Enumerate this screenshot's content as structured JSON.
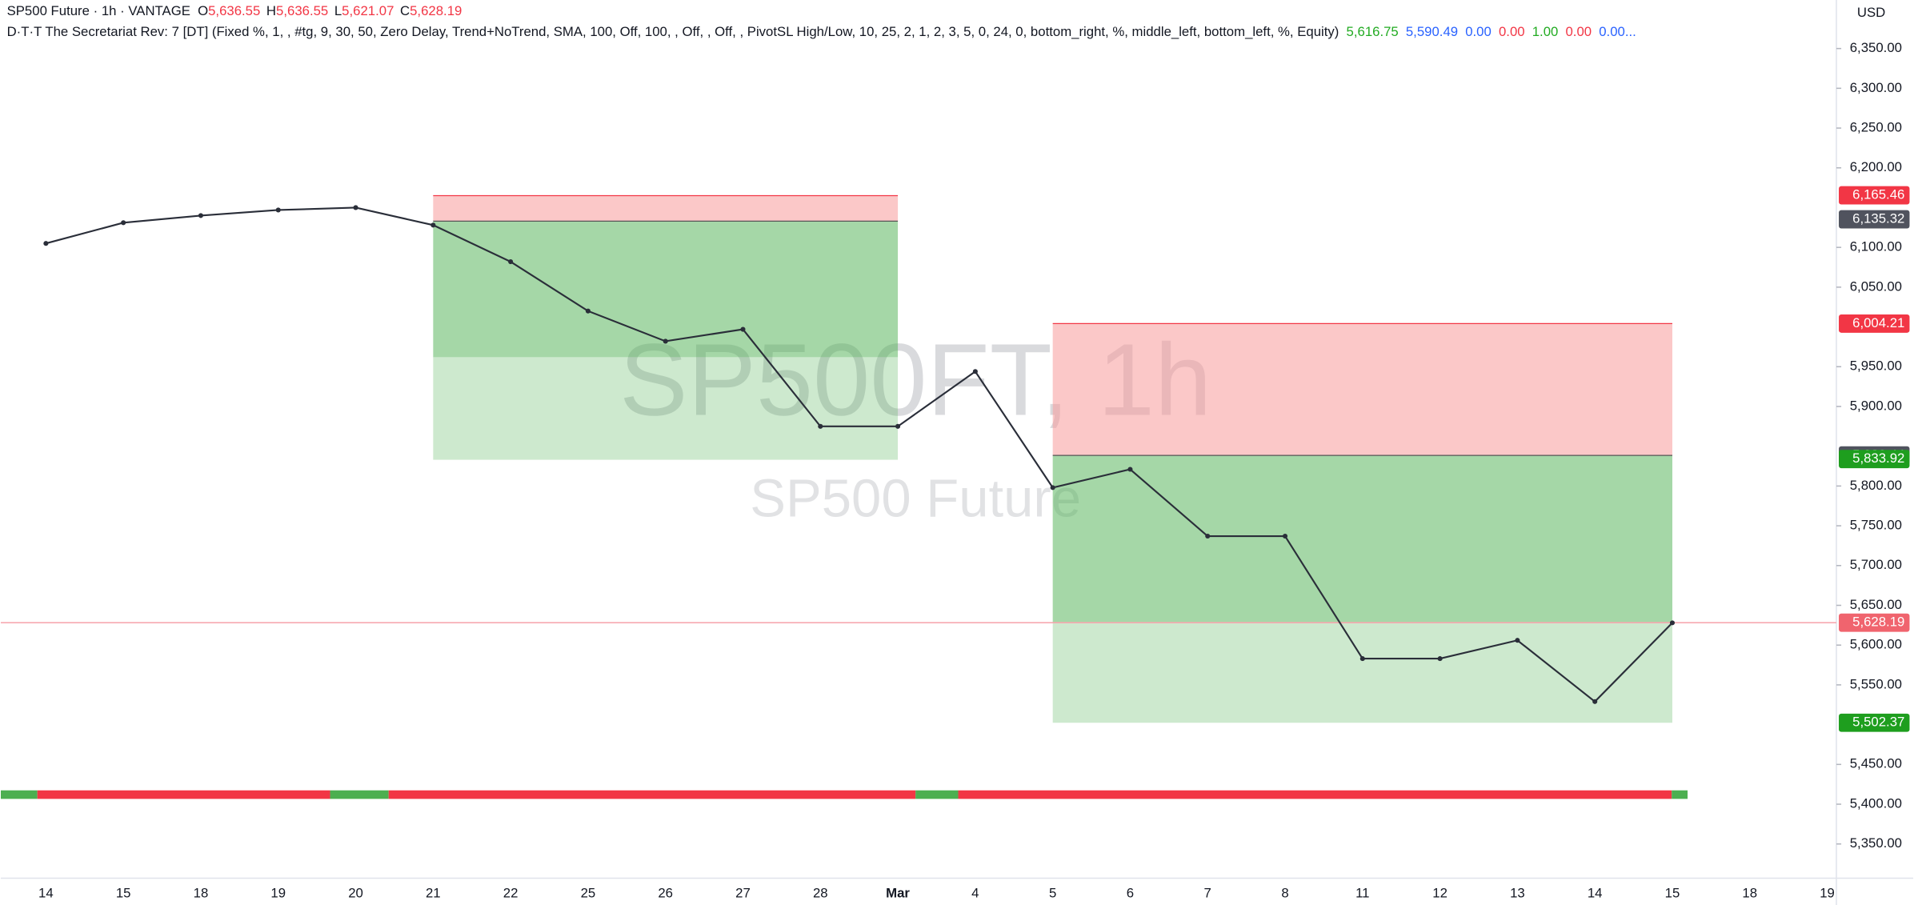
{
  "chart_data": {
    "type": "line",
    "title": "SP500 Future · 1h · VANTAGE",
    "ohlc": [
      {
        "key": "O",
        "value": 5636.55,
        "label": "5,636.55"
      },
      {
        "key": "H",
        "value": 5636.55,
        "label": "5,636.55"
      },
      {
        "key": "L",
        "value": 5621.07,
        "label": "5,621.07"
      },
      {
        "key": "C",
        "value": 5628.19,
        "label": "5,628.19"
      }
    ],
    "indicator": {
      "name": "D·T·T The  Secretariat Rev: 7 [DT] (Fixed %, 1, , #tg, 9, 30, 50, Zero Delay, Trend+NoTrend, SMA, 100, Off, 100, , Off, , Off, , PivotSL High/Low, 10, 25, 2, 1, 2, 3, 5, 0, 24, 0, bottom_right, %, middle_left, bottom_left, %, Equity)",
      "values": [
        {
          "value": 5616.75,
          "label": "5,616.75",
          "color": "#22ab22"
        },
        {
          "value": 5590.49,
          "label": "5,590.49",
          "color": "#2962ff"
        },
        {
          "value": 0,
          "label": "0.00",
          "color": "#2962ff"
        },
        {
          "value": 0,
          "label": "0.00",
          "color": "#f23645"
        },
        {
          "value": 1,
          "label": "1.00",
          "color": "#22ab22"
        },
        {
          "value": 0,
          "label": "0.00",
          "color": "#f23645"
        },
        {
          "value": 0,
          "label": "0.00...",
          "color": "#2962ff"
        }
      ]
    },
    "watermark": [
      "SP500FT, 1h",
      "SP500 Future"
    ],
    "currency": "USD",
    "categories": [
      "14",
      "15",
      "18",
      "19",
      "20",
      "21",
      "22",
      "25",
      "26",
      "27",
      "28",
      "Mar",
      "4",
      "5",
      "6",
      "7",
      "8",
      "11",
      "12",
      "13",
      "14",
      "15",
      "18",
      "19"
    ],
    "values": [
      6105,
      6131,
      6140,
      6147,
      6150,
      6128,
      6082,
      6020,
      5982,
      5997,
      5875,
      5875,
      5944,
      5798,
      5821,
      5737,
      5737,
      5583,
      5583,
      5606,
      5529,
      5628,
      null,
      null
    ],
    "color": "#2a2e39",
    "ylim": [
      5307,
      6411
    ],
    "yticks": [
      {
        "value": 6350,
        "label": "6,350.00"
      },
      {
        "value": 6300,
        "label": "6,300.00"
      },
      {
        "value": 6250,
        "label": "6,250.00"
      },
      {
        "value": 6200,
        "label": "6,200.00"
      },
      {
        "value": 6100,
        "label": "6,100.00"
      },
      {
        "value": 6050,
        "label": "6,050.00"
      },
      {
        "value": 5950,
        "label": "5,950.00"
      },
      {
        "value": 5900,
        "label": "5,900.00"
      },
      {
        "value": 5800,
        "label": "5,800.00"
      },
      {
        "value": 5750,
        "label": "5,750.00"
      },
      {
        "value": 5700,
        "label": "5,700.00"
      },
      {
        "value": 5650,
        "label": "5,650.00"
      },
      {
        "value": 5600,
        "label": "5,600.00"
      },
      {
        "value": 5550,
        "label": "5,550.00"
      },
      {
        "value": 5450,
        "label": "5,450.00"
      },
      {
        "value": 5400,
        "label": "5,400.00"
      },
      {
        "value": 5350,
        "label": "5,350.00"
      }
    ],
    "zones": [
      {
        "start": 5,
        "end": 11,
        "stop": 6165,
        "entry": 6133,
        "target1": 5962,
        "target2": 5833
      },
      {
        "start": 13,
        "end": 21,
        "stop": 6004.21,
        "entry": 5838.44,
        "target1": 5628.19,
        "target2": 5502.37
      }
    ],
    "last_price": 5628.19,
    "price_labels": [
      {
        "value": 6165.46,
        "label": "6,165.46",
        "color": "#f23645"
      },
      {
        "value": 6135.32,
        "label": "6,135.32",
        "color": "#50535e"
      },
      {
        "value": 6004.21,
        "label": "6,004.21",
        "color": "#f23645"
      },
      {
        "value": 5838.44,
        "label": "5,838.44",
        "color": "#50535e"
      },
      {
        "value": 5833.92,
        "label": "5,833.92",
        "color": "#1e9e1e"
      },
      {
        "value": 5628.19,
        "label": "5,628.19",
        "color": "#f0646e"
      },
      {
        "value": 5502.37,
        "label": "5,502.37",
        "color": "#1e9e1e"
      }
    ]
  }
}
